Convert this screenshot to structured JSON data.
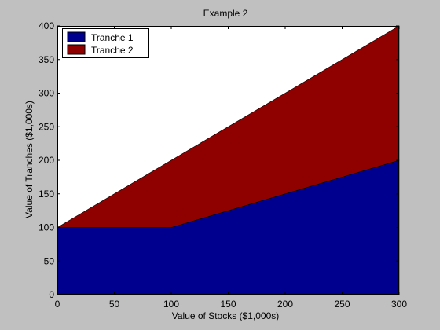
{
  "colors": {
    "figure_background": "#c0c0c0",
    "axes_background": "#ffffff",
    "tranche1": "#00008f",
    "tranche2": "#8f0000"
  },
  "chart_data": {
    "type": "area",
    "stacked": true,
    "title": "Example 2",
    "xlabel": "Value of Stocks ($1,000s)",
    "ylabel": "Value of Tranches ($1,000s)",
    "xlim": [
      0,
      300
    ],
    "ylim": [
      0,
      400
    ],
    "xticks": [
      0,
      50,
      100,
      150,
      200,
      250,
      300
    ],
    "yticks": [
      0,
      50,
      100,
      150,
      200,
      250,
      300,
      350,
      400
    ],
    "grid": false,
    "legend_position": "top-left",
    "x": [
      0,
      100,
      300
    ],
    "series": [
      {
        "name": "Tranche 1",
        "values": [
          100,
          100,
          200
        ],
        "color": "#00008f"
      },
      {
        "name": "Tranche 2",
        "values": [
          0,
          100,
          200
        ],
        "color": "#8f0000"
      }
    ]
  }
}
